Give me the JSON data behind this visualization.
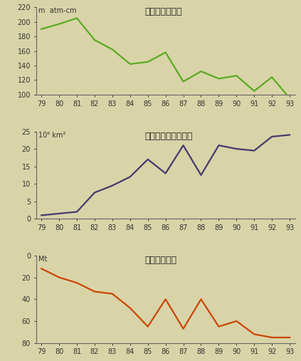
{
  "years": [
    79,
    80,
    81,
    82,
    83,
    84,
    85,
    86,
    87,
    88,
    89,
    90,
    91,
    92,
    93
  ],
  "ozone_total": [
    190,
    197,
    205,
    175,
    162,
    142,
    145,
    158,
    118,
    132,
    122,
    126,
    105,
    124,
    95
  ],
  "ozone_area": [
    1,
    1.5,
    2,
    7.5,
    9.5,
    12,
    17,
    13,
    21,
    12.5,
    21,
    20,
    19.5,
    23.5,
    24
  ],
  "ozone_destr": [
    12,
    20,
    25,
    33,
    35,
    48,
    65,
    40,
    67,
    40,
    65,
    60,
    72,
    75,
    75
  ],
  "title1": "最低オゾン全量",
  "title2": "オゾンホールの面積",
  "title3": "オゾン破壊量",
  "ylabel1": "m  atm-cm",
  "ylabel2": "10⁶ km²",
  "ylabel3": "Mt",
  "color1": "#5aaa20",
  "color2": "#44396e",
  "color3": "#cc4400",
  "bg_color": "#d8d4a8",
  "ylim1": [
    100,
    220
  ],
  "ylim2": [
    0,
    25
  ],
  "ylim3_inv": [
    0,
    80
  ],
  "yticks1": [
    100,
    120,
    140,
    160,
    180,
    200,
    220
  ],
  "yticks2": [
    0,
    5,
    10,
    15,
    20,
    25
  ],
  "yticks3": [
    0,
    20,
    40,
    60,
    80
  ]
}
